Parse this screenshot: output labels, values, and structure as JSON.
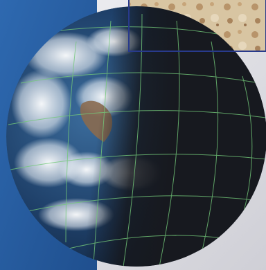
{
  "scene": {
    "subject": "globe-with-graticule",
    "elements": [
      "blue-panel",
      "globe",
      "lat-lon-grid",
      "terrain-inset"
    ],
    "colors": {
      "panel_blue": "#2d64a8",
      "panel_blue_dark": "#1d4d8c",
      "background_gray": "#e6e6ea",
      "ocean": "#1f3e6a",
      "night_side": "#1b1d24",
      "cloud": "#eef2f6",
      "land_brown": "#8a6a4f",
      "grid_line": "#74c97a",
      "inset_border": "#283a8c",
      "inset_terrain": "#d9c7a6"
    }
  }
}
